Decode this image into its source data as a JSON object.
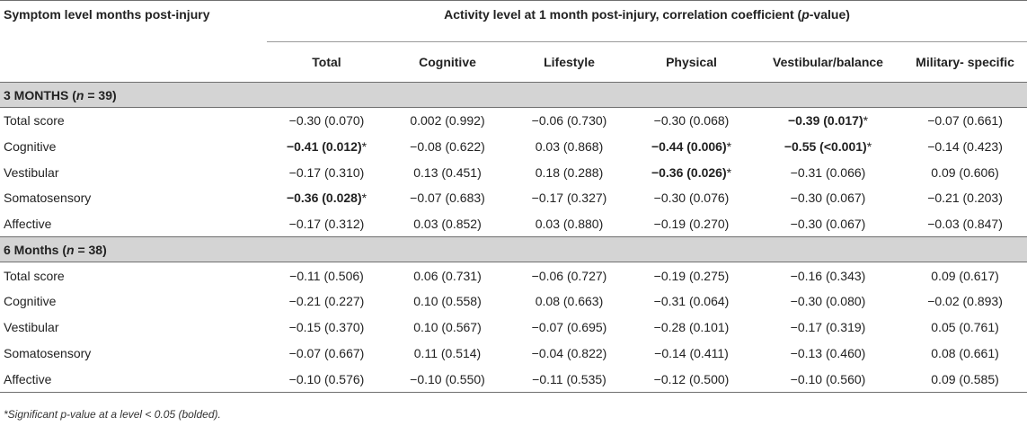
{
  "header": {
    "row_label_title": "Symptom level months post-injury",
    "span_title_prefix": "Activity level at 1 month post-injury, correlation coefficient (",
    "span_title_italic": "p",
    "span_title_suffix": "-value)",
    "columns": [
      "Total",
      "Cognitive",
      "Lifestyle",
      "Physical",
      "Vestibular/balance",
      "Military- specific"
    ]
  },
  "sections": [
    {
      "title_prefix": "3 MONTHS (",
      "title_n_italic": "n",
      "title_suffix": " = 39)",
      "rows": [
        {
          "label": "Total score",
          "cells": [
            {
              "text": "−0.30 (0.070)",
              "bold": false,
              "star": ""
            },
            {
              "text": "0.002 (0.992)",
              "bold": false,
              "star": ""
            },
            {
              "text": "−0.06 (0.730)",
              "bold": false,
              "star": ""
            },
            {
              "text": "−0.30 (0.068)",
              "bold": false,
              "star": ""
            },
            {
              "text": "−0.39 (0.017)",
              "bold": true,
              "star": "*"
            },
            {
              "text": "−0.07 (0.661)",
              "bold": false,
              "star": ""
            }
          ]
        },
        {
          "label": "Cognitive",
          "cells": [
            {
              "text": "−0.41 (0.012)",
              "bold": true,
              "star": "*"
            },
            {
              "text": "−0.08 (0.622)",
              "bold": false,
              "star": ""
            },
            {
              "text": "0.03 (0.868)",
              "bold": false,
              "star": ""
            },
            {
              "text": "−0.44 (0.006)",
              "bold": true,
              "star": "*"
            },
            {
              "text": "−0.55 (<0.001)",
              "bold": true,
              "star": "*"
            },
            {
              "text": "−0.14 (0.423)",
              "bold": false,
              "star": ""
            }
          ]
        },
        {
          "label": "Vestibular",
          "cells": [
            {
              "text": "−0.17 (0.310)",
              "bold": false,
              "star": ""
            },
            {
              "text": "0.13 (0.451)",
              "bold": false,
              "star": ""
            },
            {
              "text": "0.18 (0.288)",
              "bold": false,
              "star": ""
            },
            {
              "text": "−0.36 (0.026)",
              "bold": true,
              "star": "*"
            },
            {
              "text": "−0.31 (0.066)",
              "bold": false,
              "star": ""
            },
            {
              "text": "0.09 (0.606)",
              "bold": false,
              "star": ""
            }
          ]
        },
        {
          "label": "Somatosensory",
          "cells": [
            {
              "text": "−0.36 (0.028)",
              "bold": true,
              "star": "*"
            },
            {
              "text": "−0.07 (0.683)",
              "bold": false,
              "star": ""
            },
            {
              "text": "−0.17 (0.327)",
              "bold": false,
              "star": ""
            },
            {
              "text": "−0.30 (0.076)",
              "bold": false,
              "star": ""
            },
            {
              "text": "−0.30 (0.067)",
              "bold": false,
              "star": ""
            },
            {
              "text": "−0.21 (0.203)",
              "bold": false,
              "star": ""
            }
          ]
        },
        {
          "label": "Affective",
          "cells": [
            {
              "text": "−0.17 (0.312)",
              "bold": false,
              "star": ""
            },
            {
              "text": "0.03 (0.852)",
              "bold": false,
              "star": ""
            },
            {
              "text": "0.03 (0.880)",
              "bold": false,
              "star": ""
            },
            {
              "text": "−0.19 (0.270)",
              "bold": false,
              "star": ""
            },
            {
              "text": "−0.30 (0.067)",
              "bold": false,
              "star": ""
            },
            {
              "text": "−0.03 (0.847)",
              "bold": false,
              "star": ""
            }
          ]
        }
      ]
    },
    {
      "title_prefix": "6 Months (",
      "title_n_italic": "n",
      "title_suffix": " = 38)",
      "rows": [
        {
          "label": "Total score",
          "cells": [
            {
              "text": "−0.11 (0.506)",
              "bold": false,
              "star": ""
            },
            {
              "text": "0.06 (0.731)",
              "bold": false,
              "star": ""
            },
            {
              "text": "−0.06 (0.727)",
              "bold": false,
              "star": ""
            },
            {
              "text": "−0.19 (0.275)",
              "bold": false,
              "star": ""
            },
            {
              "text": "−0.16 (0.343)",
              "bold": false,
              "star": ""
            },
            {
              "text": "0.09 (0.617)",
              "bold": false,
              "star": ""
            }
          ]
        },
        {
          "label": "Cognitive",
          "cells": [
            {
              "text": "−0.21 (0.227)",
              "bold": false,
              "star": ""
            },
            {
              "text": "0.10 (0.558)",
              "bold": false,
              "star": ""
            },
            {
              "text": "0.08 (0.663)",
              "bold": false,
              "star": ""
            },
            {
              "text": "−0.31 (0.064)",
              "bold": false,
              "star": ""
            },
            {
              "text": "−0.30 (0.080)",
              "bold": false,
              "star": ""
            },
            {
              "text": "−0.02 (0.893)",
              "bold": false,
              "star": ""
            }
          ]
        },
        {
          "label": "Vestibular",
          "cells": [
            {
              "text": "−0.15 (0.370)",
              "bold": false,
              "star": ""
            },
            {
              "text": "0.10 (0.567)",
              "bold": false,
              "star": ""
            },
            {
              "text": "−0.07 (0.695)",
              "bold": false,
              "star": ""
            },
            {
              "text": "−0.28 (0.101)",
              "bold": false,
              "star": ""
            },
            {
              "text": "−0.17 (0.319)",
              "bold": false,
              "star": ""
            },
            {
              "text": "0.05 (0.761)",
              "bold": false,
              "star": ""
            }
          ]
        },
        {
          "label": "Somatosensory",
          "cells": [
            {
              "text": "−0.07 (0.667)",
              "bold": false,
              "star": ""
            },
            {
              "text": "0.11 (0.514)",
              "bold": false,
              "star": ""
            },
            {
              "text": "−0.04 (0.822)",
              "bold": false,
              "star": ""
            },
            {
              "text": "−0.14 (0.411)",
              "bold": false,
              "star": ""
            },
            {
              "text": "−0.13 (0.460)",
              "bold": false,
              "star": ""
            },
            {
              "text": "0.08 (0.661)",
              "bold": false,
              "star": ""
            }
          ]
        },
        {
          "label": "Affective",
          "cells": [
            {
              "text": "−0.10 (0.576)",
              "bold": false,
              "star": ""
            },
            {
              "text": "−0.10 (0.550)",
              "bold": false,
              "star": ""
            },
            {
              "text": "−0.11 (0.535)",
              "bold": false,
              "star": ""
            },
            {
              "text": "−0.12 (0.500)",
              "bold": false,
              "star": ""
            },
            {
              "text": "−0.10 (0.560)",
              "bold": false,
              "star": ""
            },
            {
              "text": "0.09 (0.585)",
              "bold": false,
              "star": ""
            }
          ]
        }
      ]
    }
  ],
  "footnote": "*Significant p-value at a level < 0.05 (bolded)."
}
